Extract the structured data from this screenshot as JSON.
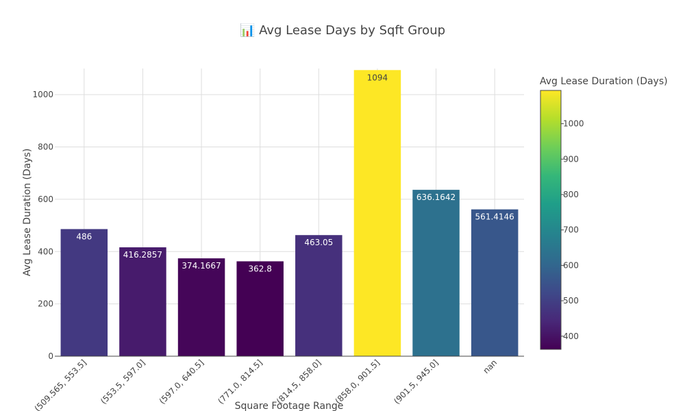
{
  "chart_data": {
    "type": "bar",
    "title": "📊 Avg Lease Days by Sqft Group",
    "xlabel": "Square Footage Range",
    "ylabel": "Avg Lease Duration (Days)",
    "categories": [
      "(509.565, 553.5]",
      "(553.5, 597.0]",
      "(597.0, 640.5]",
      "(771.0, 814.5]",
      "(814.5, 858.0]",
      "(858.0, 901.5]",
      "(901.5, 945.0]",
      "nan"
    ],
    "values": [
      486,
      416.2857,
      374.1667,
      362.8,
      463.05,
      1094,
      636.1642,
      561.4146
    ],
    "value_labels": [
      "486",
      "416.2857",
      "374.1667",
      "362.8",
      "463.05",
      "1094",
      "636.1642",
      "561.4146"
    ],
    "ylim": [
      0,
      1100
    ],
    "yticks": [
      "0",
      "200",
      "400",
      "600",
      "800",
      "1000"
    ],
    "grid": true,
    "colorscale": "viridis",
    "colorbar": {
      "title": "Avg Lease Duration (Days)",
      "range": [
        362.8,
        1094
      ],
      "ticks": [
        "400",
        "500",
        "600",
        "700",
        "800",
        "900",
        "1000"
      ]
    }
  }
}
